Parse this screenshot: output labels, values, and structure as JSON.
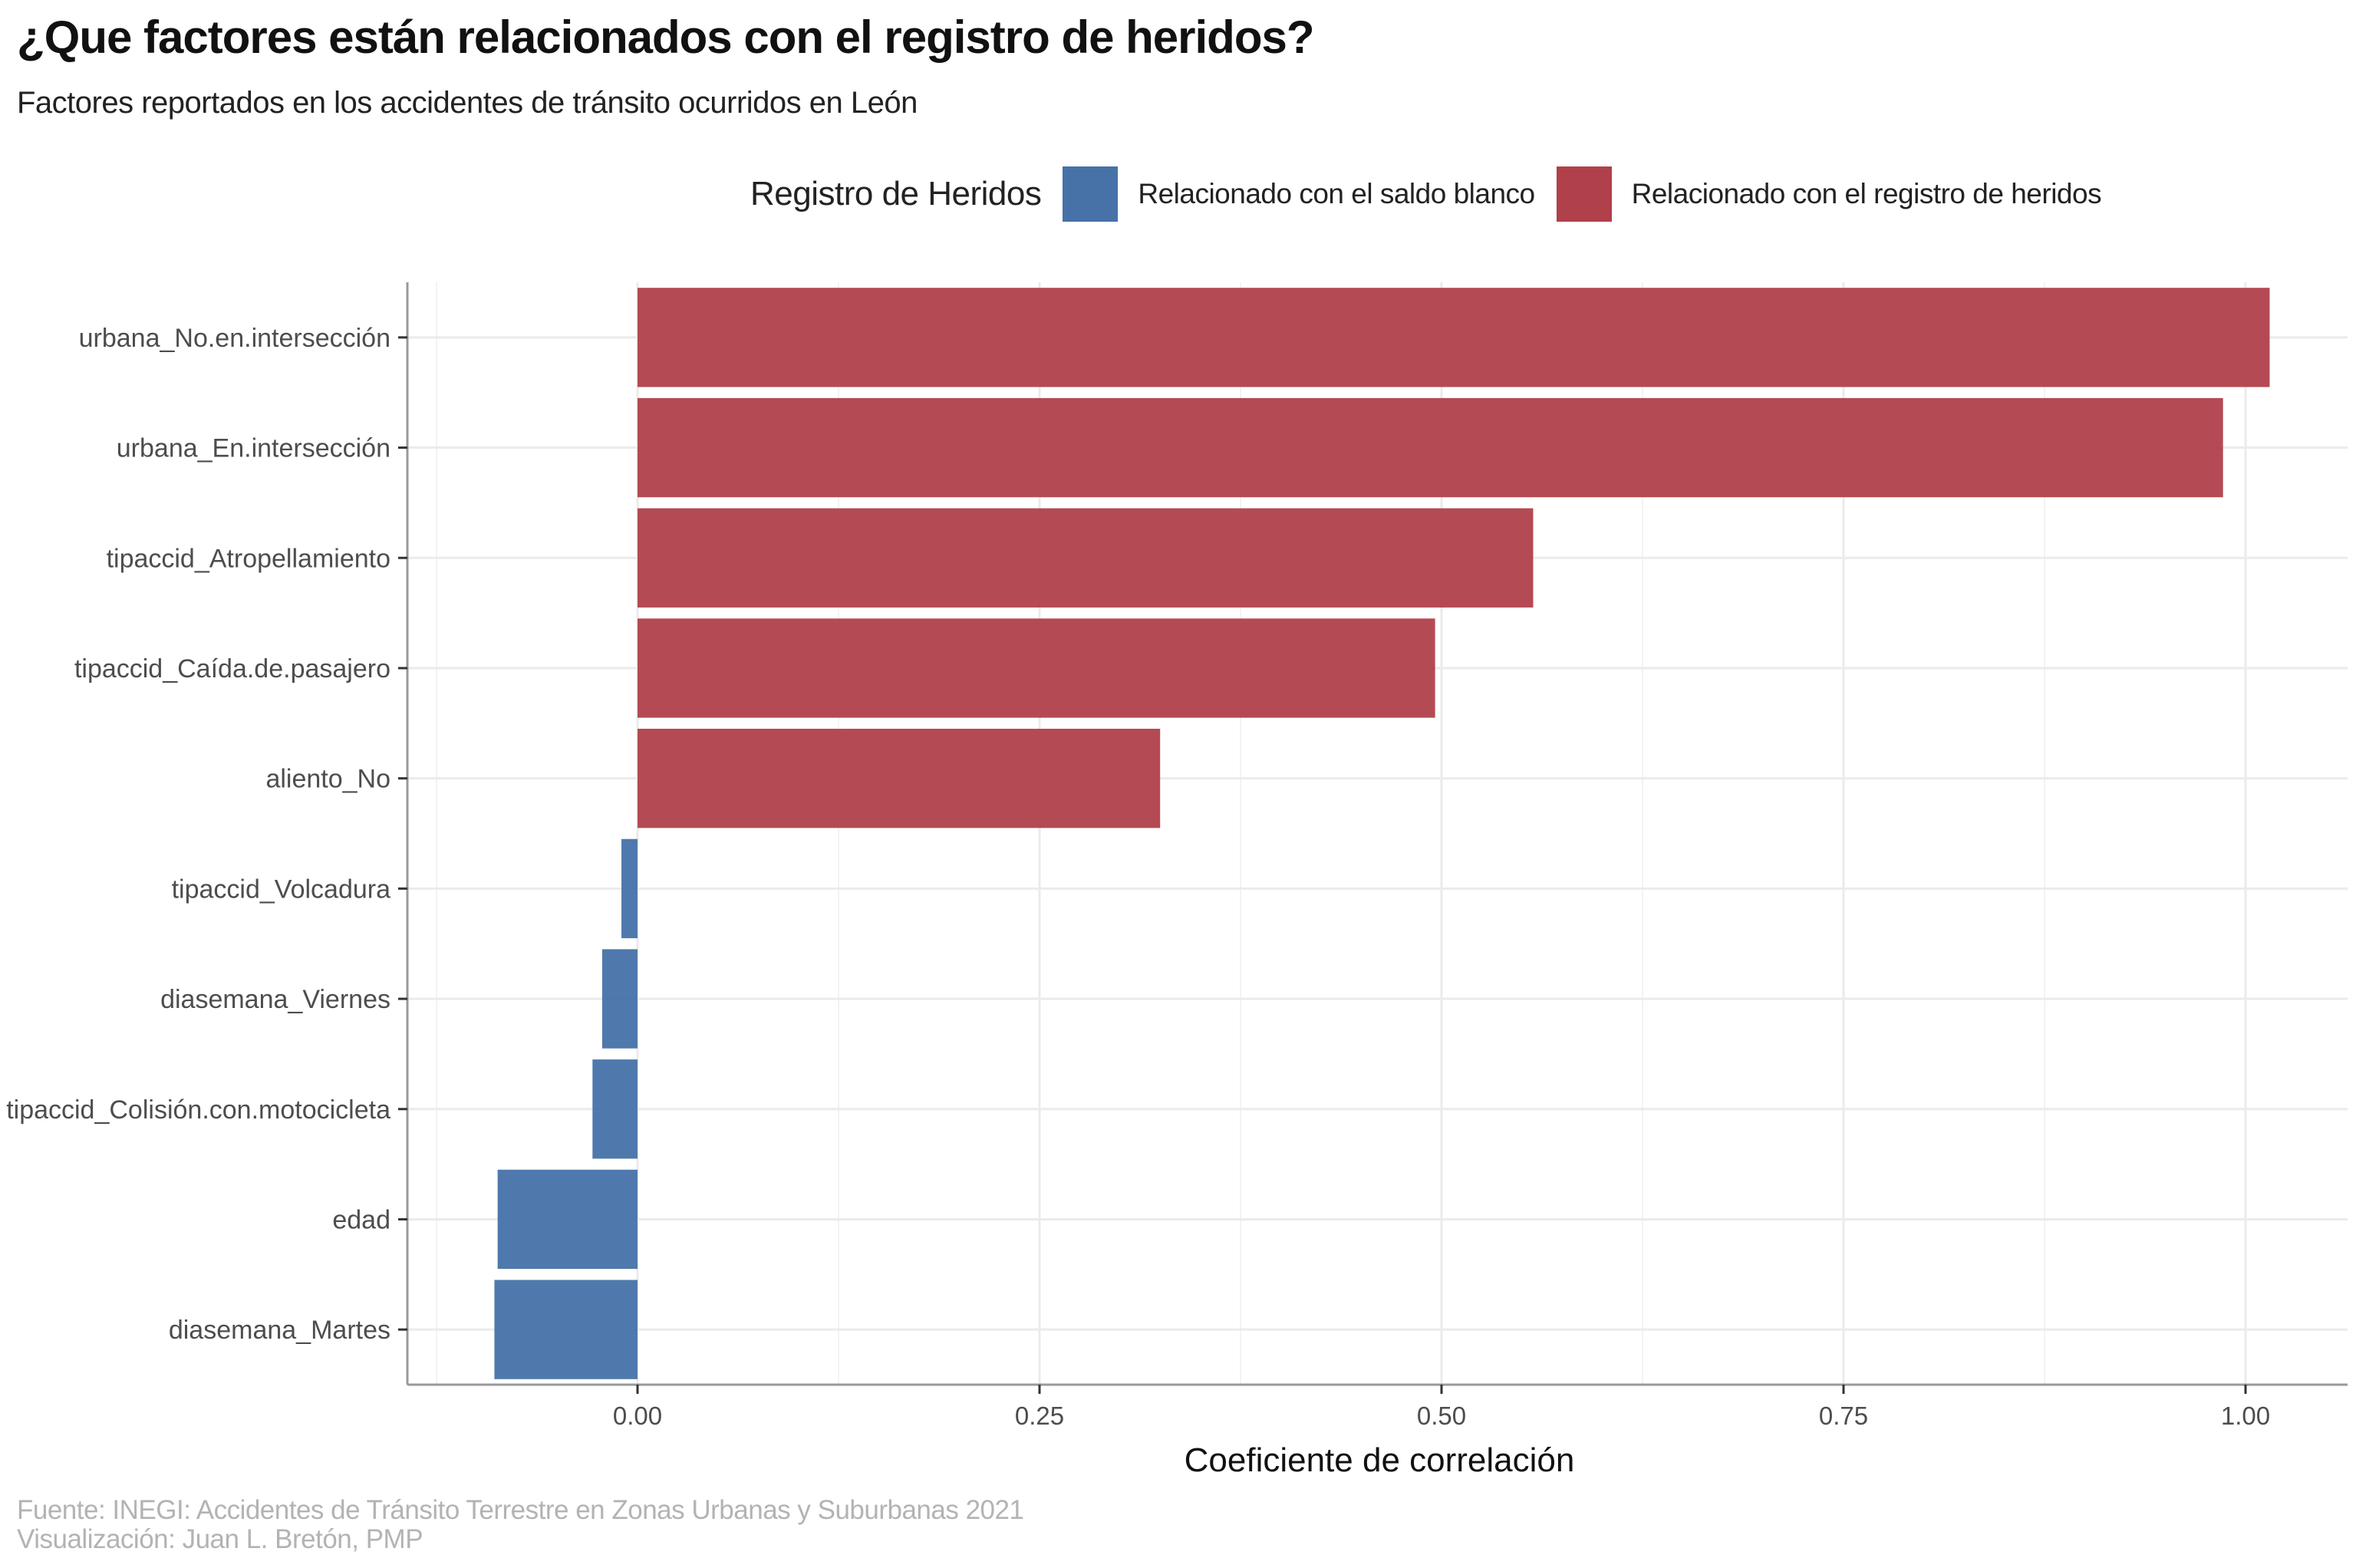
{
  "title": "¿Que factores están relacionados con el registro de heridos?",
  "subtitle": "Factores reportados en los accidentes de tránsito ocurridos en León",
  "legend": {
    "title": "Registro de Heridos",
    "items": [
      {
        "label": "Relacionado con el saldo blanco",
        "color": "#4672a8"
      },
      {
        "label": "Relacionado con el registro de heridos",
        "color": "#b0404a"
      }
    ]
  },
  "caption": {
    "line1": "Fuente: INEGI: Accidentes de Tránsito Terrestre en Zonas Urbanas y Suburbanas 2021",
    "line2": "Visualización: Juan L. Bretón, PMP"
  },
  "chart_data": {
    "type": "bar",
    "orientation": "horizontal",
    "xlabel": "Coeficiente de correlación",
    "ylabel": "",
    "xlim": [
      -0.125,
      1.06
    ],
    "xticks": [
      0.0,
      0.25,
      0.5,
      0.75,
      1.0
    ],
    "xtick_labels": [
      "0.00",
      "0.25",
      "0.50",
      "0.75",
      "1.00"
    ],
    "grid": true,
    "legend_position": "top",
    "categories": [
      "urbana_No.en.intersección",
      "urbana_En.intersección",
      "tipaccid_Atropellamiento",
      "tipaccid_Caída.de.pasajero",
      "aliento_No",
      "tipaccid_Volcadura",
      "diasemana_Viernes",
      "tipaccid_Colisión.con.motocicleta",
      "edad",
      "diasemana_Martes"
    ],
    "values": [
      1.015,
      0.986,
      0.557,
      0.496,
      0.325,
      -0.01,
      -0.022,
      -0.028,
      -0.087,
      -0.089
    ],
    "series_groups": [
      "Relacionado con el registro de heridos",
      "Relacionado con el registro de heridos",
      "Relacionado con el registro de heridos",
      "Relacionado con el registro de heridos",
      "Relacionado con el registro de heridos",
      "Relacionado con el saldo blanco",
      "Relacionado con el saldo blanco",
      "Relacionado con el saldo blanco",
      "Relacionado con el saldo blanco",
      "Relacionado con el saldo blanco"
    ]
  }
}
